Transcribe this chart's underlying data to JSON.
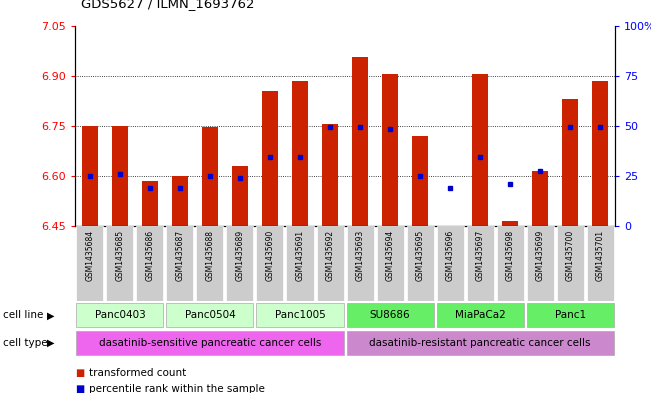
{
  "title": "GDS5627 / ILMN_1693762",
  "samples": [
    "GSM1435684",
    "GSM1435685",
    "GSM1435686",
    "GSM1435687",
    "GSM1435688",
    "GSM1435689",
    "GSM1435690",
    "GSM1435691",
    "GSM1435692",
    "GSM1435693",
    "GSM1435694",
    "GSM1435695",
    "GSM1435696",
    "GSM1435697",
    "GSM1435698",
    "GSM1435699",
    "GSM1435700",
    "GSM1435701"
  ],
  "bar_values": [
    6.75,
    6.75,
    6.585,
    6.6,
    6.745,
    6.63,
    6.855,
    6.885,
    6.755,
    6.955,
    6.905,
    6.72,
    6.45,
    6.905,
    6.465,
    6.615,
    6.83,
    6.885
  ],
  "percentile_values": [
    6.6,
    6.605,
    6.565,
    6.565,
    6.6,
    6.595,
    6.655,
    6.655,
    6.745,
    6.745,
    6.74,
    6.6,
    6.565,
    6.655,
    6.575,
    6.615,
    6.745,
    6.745
  ],
  "ymin": 6.45,
  "ymax": 7.05,
  "yticks_left": [
    6.45,
    6.6,
    6.75,
    6.9,
    7.05
  ],
  "yticks_right_vals": [
    0,
    25,
    50,
    75,
    100
  ],
  "bar_color": "#cc2200",
  "dot_color": "#0000cc",
  "bg_color": "#ffffff",
  "plot_bg": "#ffffff",
  "grid_color": "#000000",
  "xtick_bg": "#cccccc",
  "cell_lines": [
    {
      "label": "Panc0403",
      "start": 0,
      "end": 2,
      "color": "#ccffcc"
    },
    {
      "label": "Panc0504",
      "start": 3,
      "end": 5,
      "color": "#ccffcc"
    },
    {
      "label": "Panc1005",
      "start": 6,
      "end": 8,
      "color": "#ccffcc"
    },
    {
      "label": "SU8686",
      "start": 9,
      "end": 11,
      "color": "#66ee66"
    },
    {
      "label": "MiaPaCa2",
      "start": 12,
      "end": 14,
      "color": "#66ee66"
    },
    {
      "label": "Panc1",
      "start": 15,
      "end": 17,
      "color": "#66ee66"
    }
  ],
  "cell_types": [
    {
      "label": "dasatinib-sensitive pancreatic cancer cells",
      "start": 0,
      "end": 8,
      "color": "#ee66ee"
    },
    {
      "label": "dasatinib-resistant pancreatic cancer cells",
      "start": 9,
      "end": 17,
      "color": "#cc88cc"
    }
  ],
  "legend_items": [
    {
      "label": "transformed count",
      "color": "#cc2200"
    },
    {
      "label": "percentile rank within the sample",
      "color": "#0000cc"
    }
  ]
}
